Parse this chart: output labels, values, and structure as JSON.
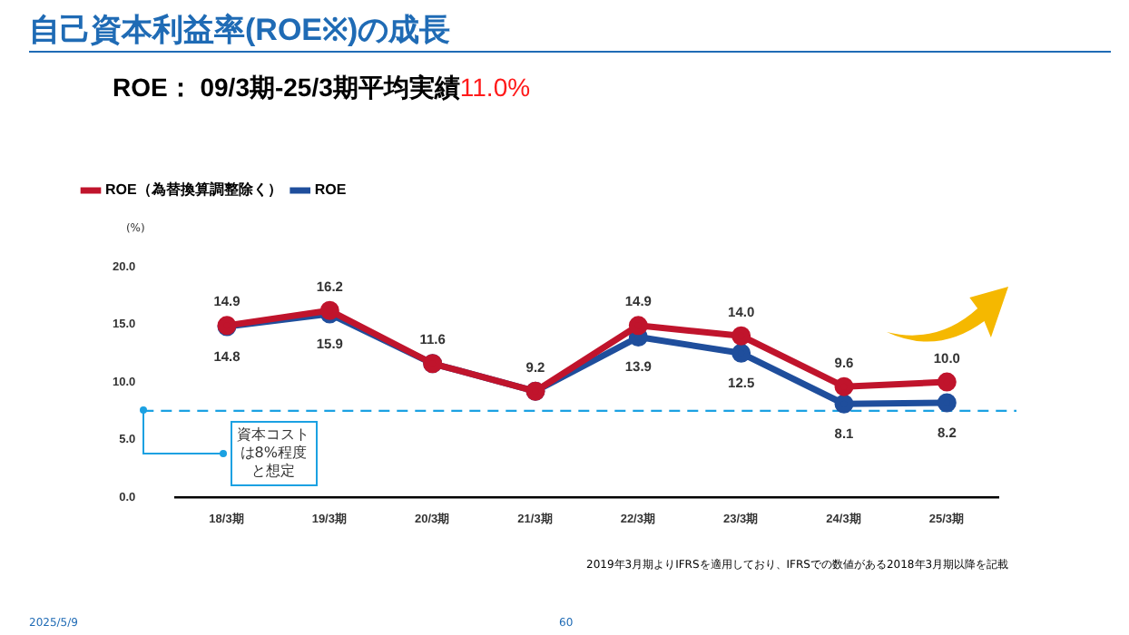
{
  "chart_data": {
    "type": "line",
    "title": "自己資本利益率(ROE※)の成長",
    "subtitle": "ROE： 09/3期-25/3期平均実績11.0%",
    "ylabel": "(%)",
    "categories": [
      "18/3期",
      "19/3期",
      "20/3期",
      "21/3期",
      "22/3期",
      "23/3期",
      "24/3期",
      "25/3期"
    ],
    "series": [
      {
        "name": "ROE（為替換算調整除く）",
        "color": "#c0142c",
        "values": [
          14.9,
          16.2,
          11.6,
          9.2,
          14.9,
          14.0,
          9.6,
          10.0
        ],
        "value_labels": [
          "14.9",
          "16.2",
          "11.6",
          "9.2",
          "14.9",
          "14.0",
          "9.6",
          "10.0"
        ]
      },
      {
        "name": "ROE",
        "color": "#1f4e9c",
        "values": [
          14.8,
          15.9,
          11.6,
          9.2,
          13.9,
          12.5,
          8.1,
          8.2
        ],
        "value_labels": [
          "14.8",
          "15.9",
          null,
          null,
          "13.9",
          "12.5",
          "8.1",
          "8.2"
        ]
      }
    ],
    "ylim": [
      0,
      20
    ],
    "yticks": [
      {
        "value": 0,
        "label": "0.0"
      },
      {
        "value": 5,
        "label": "5.0"
      },
      {
        "value": 10,
        "label": "10.0"
      },
      {
        "value": 15,
        "label": "15.0"
      },
      {
        "value": 20,
        "label": "20.0"
      }
    ],
    "ref_lines": [
      {
        "axis": "y",
        "value": 7.5,
        "label": "資本コストは8%程度と想定",
        "color": "#1ba1e2",
        "line_style": "dashed"
      }
    ],
    "grid": false,
    "legend": "top left",
    "marker": "circle",
    "line_style": "solid",
    "annotations": [
      "2019年3月期よりIFRSを適用しており、IFRSでの数値がある2018年3月期以降を記載",
      "2025/5/9",
      "60"
    ]
  }
}
